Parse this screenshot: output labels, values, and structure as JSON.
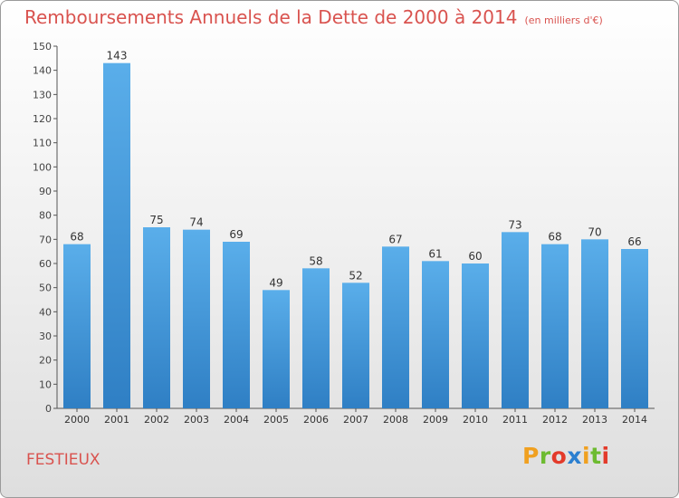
{
  "header": {
    "title": "Remboursements Annuels de la Dette de 2000 à 2014",
    "subtitle": "(en milliers d'€)"
  },
  "footer": {
    "commune": "FESTIEUX",
    "logo_text": "Proxiti"
  },
  "colors": {
    "title": "#d9534f",
    "bar_light": "#5aaeea",
    "bar_dark": "#2f7fc4",
    "logo_letters": [
      "#f0a020",
      "#6dbb30",
      "#e33a2a",
      "#2b7fd0",
      "#f0a020",
      "#6dbb30",
      "#e33a2a"
    ]
  },
  "chart_data": {
    "type": "bar",
    "categories": [
      "2000",
      "2001",
      "2002",
      "2003",
      "2004",
      "2005",
      "2006",
      "2007",
      "2008",
      "2009",
      "2010",
      "2011",
      "2012",
      "2013",
      "2014"
    ],
    "values": [
      68,
      143,
      75,
      74,
      69,
      49,
      58,
      52,
      67,
      61,
      60,
      73,
      68,
      70,
      66
    ],
    "ylim": [
      0,
      150
    ],
    "yticks": [
      0,
      10,
      20,
      30,
      40,
      50,
      60,
      70,
      80,
      90,
      100,
      110,
      120,
      130,
      140,
      150
    ],
    "grid": false,
    "data_labels": true
  }
}
